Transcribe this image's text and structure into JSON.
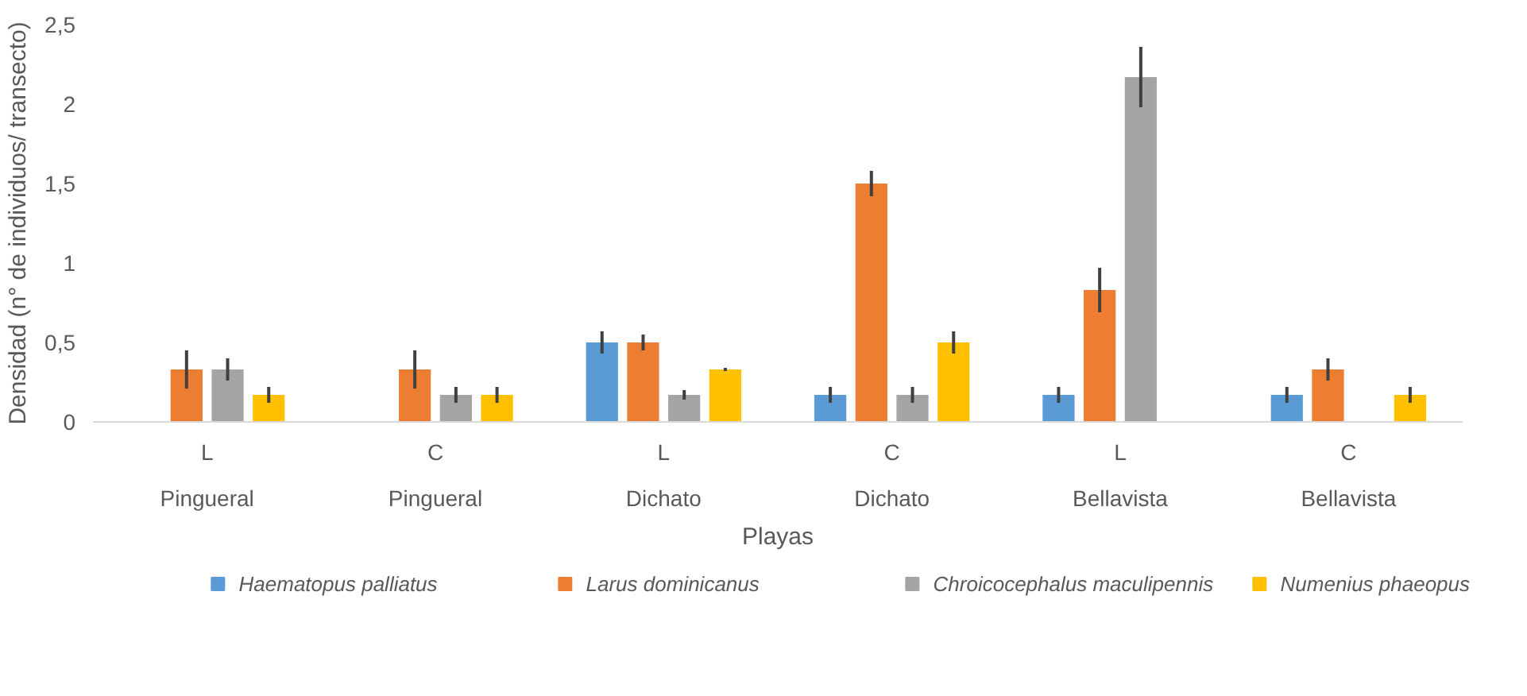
{
  "chart_data": {
    "type": "bar",
    "xlabel": "Playas",
    "ylabel": "Densidad (n° de individuos/ transecto)",
    "categories": [
      "L\nPingueral",
      "C\nPingueral",
      "L\nDichato",
      "C\nDichato",
      "L\nBellavista",
      "C\nBellavista"
    ],
    "series": [
      {
        "name": "Haematopus palliatus",
        "color": "#5b9bd5",
        "values": [
          null,
          null,
          0.5,
          0.17,
          0.17,
          0.17
        ],
        "errors": [
          null,
          null,
          0.07,
          0.05,
          0.05,
          0.05
        ]
      },
      {
        "name": "Larus dominicanus",
        "color": "#ed7d31",
        "values": [
          0.33,
          0.33,
          0.5,
          1.5,
          0.83,
          0.33
        ],
        "errors": [
          0.12,
          0.12,
          0.05,
          0.08,
          0.14,
          0.07
        ]
      },
      {
        "name": "Chroicocephalus maculipennis",
        "color": "#a5a5a5",
        "values": [
          0.33,
          0.17,
          0.17,
          0.17,
          2.17,
          null
        ],
        "errors": [
          0.07,
          0.05,
          0.03,
          0.05,
          0.19,
          null
        ]
      },
      {
        "name": "Numenius phaeopus",
        "color": "#ffc000",
        "values": [
          0.17,
          0.17,
          0.33,
          0.5,
          null,
          0.17
        ],
        "errors": [
          0.05,
          0.05,
          0.01,
          0.07,
          null,
          0.05
        ]
      }
    ],
    "ylim": [
      0,
      2.5
    ],
    "yticks": [
      0,
      {
        "value": 0.5,
        "label": "0,5"
      },
      1,
      {
        "value": 1.5,
        "label": "1,5"
      },
      2,
      {
        "value": 2.5,
        "label": "2,5"
      }
    ],
    "grid": false,
    "legend": "bottom"
  }
}
